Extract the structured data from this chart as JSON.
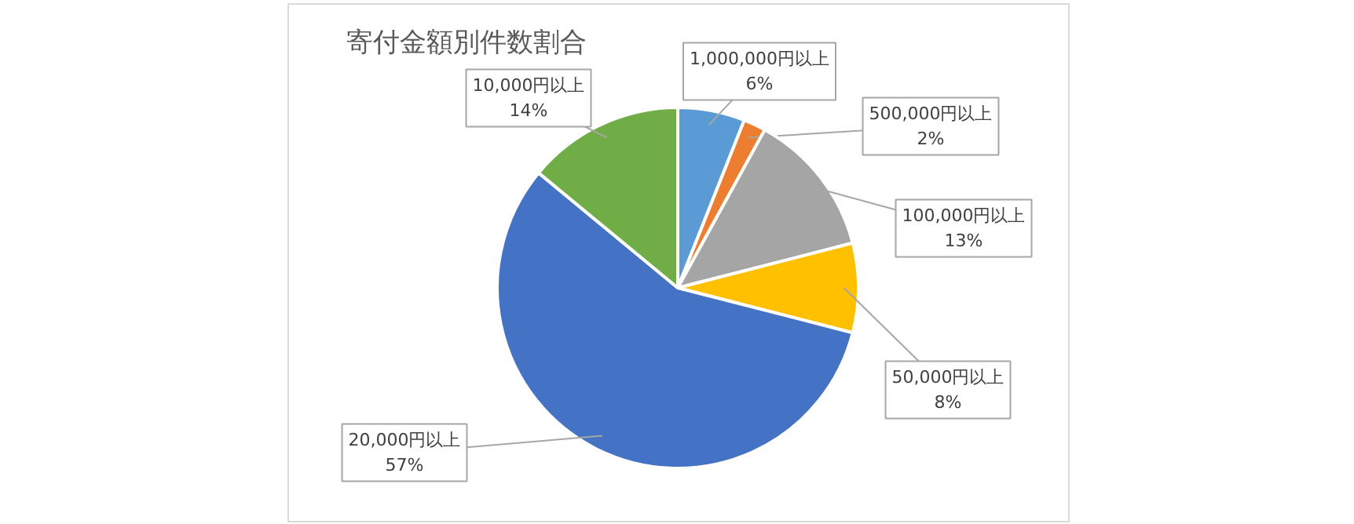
{
  "chart_data": {
    "type": "pie",
    "title": "寄付金額別件数割合",
    "categories": [
      "1,000,000円以上",
      "500,000円以上",
      "100,000円以上",
      "50,000円以上",
      "20,000円以上",
      "10,000円以上"
    ],
    "values": [
      6,
      2,
      13,
      8,
      57,
      14
    ],
    "value_labels": [
      "6%",
      "2%",
      "13%",
      "8%",
      "57%",
      "14%"
    ],
    "colors": [
      "#5b9bd5",
      "#ed7d31",
      "#a5a5a5",
      "#ffc000",
      "#4472c4",
      "#70ad47"
    ]
  }
}
